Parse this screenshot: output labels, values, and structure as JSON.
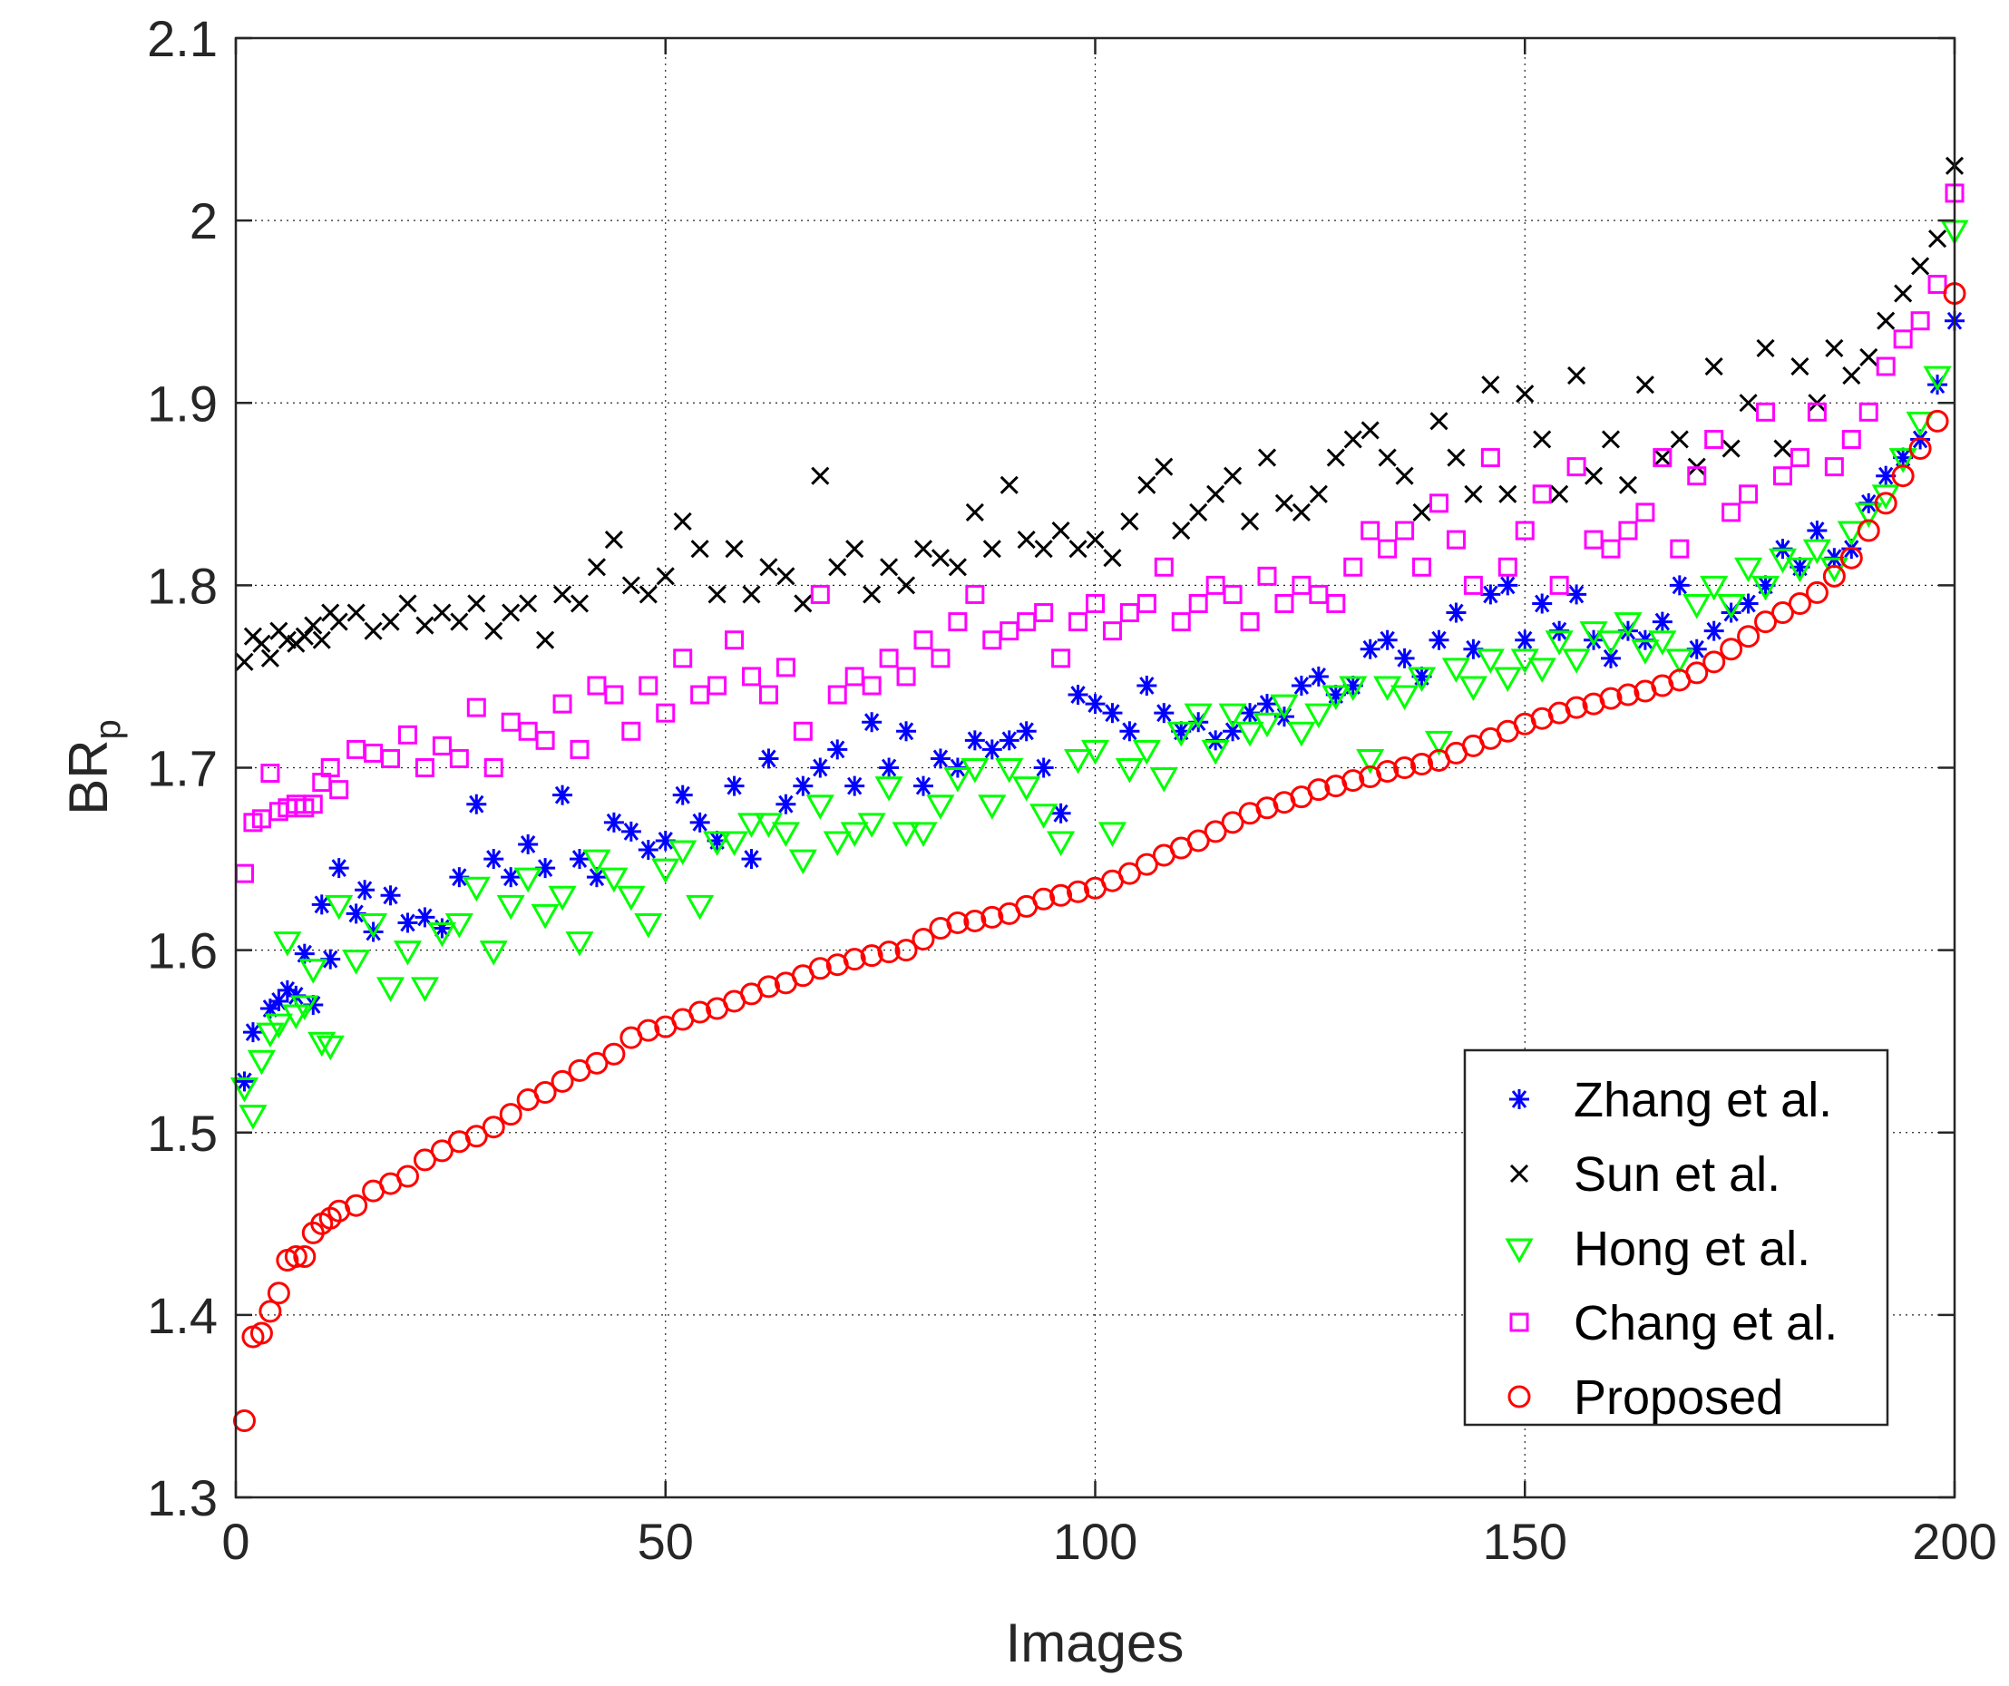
{
  "chart_data": {
    "type": "scatter",
    "title": "",
    "xlabel": "Images",
    "ylabel": "BR",
    "ylabel_subscript": "p",
    "xlim": [
      0,
      200
    ],
    "ylim": [
      1.3,
      2.1
    ],
    "xticks": [
      0,
      50,
      100,
      150,
      200
    ],
    "xtick_labels": [
      "0",
      "50",
      "100",
      "150",
      "200"
    ],
    "yticks": [
      1.3,
      1.4,
      1.5,
      1.6,
      1.7,
      1.8,
      1.9,
      2.0,
      2.1
    ],
    "ytick_labels": [
      "1.3",
      "1.4",
      "1.5",
      "1.6",
      "1.7",
      "1.8",
      "1.9",
      "2",
      "2.1"
    ],
    "grid": true,
    "legend_position": "bottom-right",
    "series": [
      {
        "name": "Zhang et al.",
        "marker": "asterisk",
        "color": "#0000ff",
        "x": [
          1,
          2,
          4,
          5,
          6,
          7,
          8,
          9,
          10,
          11,
          12,
          14,
          15,
          16,
          18,
          20,
          22,
          24,
          26,
          28,
          30,
          32,
          34,
          36,
          38,
          40,
          42,
          44,
          46,
          48,
          50,
          52,
          54,
          56,
          58,
          60,
          62,
          64,
          66,
          68,
          70,
          72,
          74,
          76,
          78,
          80,
          82,
          84,
          86,
          88,
          90,
          92,
          94,
          96,
          98,
          100,
          102,
          104,
          106,
          108,
          110,
          112,
          114,
          116,
          118,
          120,
          122,
          124,
          126,
          128,
          130,
          132,
          134,
          136,
          138,
          140,
          142,
          144,
          146,
          148,
          150,
          152,
          154,
          156,
          158,
          160,
          162,
          164,
          166,
          168,
          170,
          172,
          174,
          176,
          178,
          180,
          182,
          184,
          186,
          188,
          190,
          192,
          194,
          196,
          198,
          200
        ],
        "y": [
          1.528,
          1.555,
          1.568,
          1.572,
          1.578,
          1.575,
          1.598,
          1.57,
          1.625,
          1.595,
          1.645,
          1.62,
          1.633,
          1.61,
          1.63,
          1.615,
          1.618,
          1.612,
          1.64,
          1.68,
          1.65,
          1.64,
          1.658,
          1.645,
          1.685,
          1.65,
          1.64,
          1.67,
          1.665,
          1.655,
          1.66,
          1.685,
          1.67,
          1.66,
          1.69,
          1.65,
          1.705,
          1.68,
          1.69,
          1.7,
          1.71,
          1.69,
          1.725,
          1.7,
          1.72,
          1.69,
          1.705,
          1.7,
          1.715,
          1.71,
          1.715,
          1.72,
          1.7,
          1.675,
          1.74,
          1.735,
          1.73,
          1.72,
          1.745,
          1.73,
          1.72,
          1.725,
          1.715,
          1.72,
          1.73,
          1.735,
          1.728,
          1.745,
          1.75,
          1.74,
          1.745,
          1.765,
          1.77,
          1.76,
          1.75,
          1.77,
          1.785,
          1.765,
          1.795,
          1.8,
          1.77,
          1.79,
          1.775,
          1.795,
          1.77,
          1.76,
          1.775,
          1.77,
          1.78,
          1.8,
          1.765,
          1.775,
          1.785,
          1.79,
          1.8,
          1.82,
          1.81,
          1.83,
          1.815,
          1.82,
          1.845,
          1.86,
          1.87,
          1.88,
          1.91,
          1.945
        ]
      },
      {
        "name": "Sun et al.",
        "marker": "x",
        "color": "#000000",
        "x": [
          1,
          2,
          3,
          4,
          5,
          6,
          7,
          8,
          9,
          10,
          11,
          12,
          14,
          16,
          18,
          20,
          22,
          24,
          26,
          28,
          30,
          32,
          34,
          36,
          38,
          40,
          42,
          44,
          46,
          48,
          50,
          52,
          54,
          56,
          58,
          60,
          62,
          64,
          66,
          68,
          70,
          72,
          74,
          76,
          78,
          80,
          82,
          84,
          86,
          88,
          90,
          92,
          94,
          96,
          98,
          100,
          102,
          104,
          106,
          108,
          110,
          112,
          114,
          116,
          118,
          120,
          122,
          124,
          126,
          128,
          130,
          132,
          134,
          136,
          138,
          140,
          142,
          144,
          146,
          148,
          150,
          152,
          154,
          156,
          158,
          160,
          162,
          164,
          166,
          168,
          170,
          172,
          174,
          176,
          178,
          180,
          182,
          184,
          186,
          188,
          190,
          192,
          194,
          196,
          198,
          200
        ],
        "y": [
          1.758,
          1.772,
          1.768,
          1.76,
          1.775,
          1.77,
          1.768,
          1.772,
          1.778,
          1.77,
          1.785,
          1.78,
          1.785,
          1.775,
          1.78,
          1.79,
          1.778,
          1.785,
          1.78,
          1.79,
          1.775,
          1.785,
          1.79,
          1.77,
          1.795,
          1.79,
          1.81,
          1.825,
          1.8,
          1.795,
          1.805,
          1.835,
          1.82,
          1.795,
          1.82,
          1.795,
          1.81,
          1.805,
          1.79,
          1.86,
          1.81,
          1.82,
          1.795,
          1.81,
          1.8,
          1.82,
          1.815,
          1.81,
          1.84,
          1.82,
          1.855,
          1.825,
          1.82,
          1.83,
          1.82,
          1.825,
          1.815,
          1.835,
          1.855,
          1.865,
          1.83,
          1.84,
          1.85,
          1.86,
          1.835,
          1.87,
          1.845,
          1.84,
          1.85,
          1.87,
          1.88,
          1.885,
          1.87,
          1.86,
          1.84,
          1.89,
          1.87,
          1.85,
          1.91,
          1.85,
          1.905,
          1.88,
          1.85,
          1.915,
          1.86,
          1.88,
          1.855,
          1.91,
          1.87,
          1.88,
          1.865,
          1.92,
          1.875,
          1.9,
          1.93,
          1.875,
          1.92,
          1.9,
          1.93,
          1.915,
          1.925,
          1.945,
          1.96,
          1.975,
          1.99,
          2.03
        ]
      },
      {
        "name": "Hong et al.",
        "marker": "triangle-down",
        "color": "#00ff00",
        "x": [
          1,
          2,
          3,
          4,
          5,
          6,
          7,
          8,
          9,
          10,
          11,
          12,
          14,
          16,
          18,
          20,
          22,
          24,
          26,
          28,
          30,
          32,
          34,
          36,
          38,
          40,
          42,
          44,
          46,
          48,
          50,
          52,
          54,
          56,
          58,
          60,
          62,
          64,
          66,
          68,
          70,
          72,
          74,
          76,
          78,
          80,
          82,
          84,
          86,
          88,
          90,
          92,
          94,
          96,
          98,
          100,
          102,
          104,
          106,
          108,
          110,
          112,
          114,
          116,
          118,
          120,
          122,
          124,
          126,
          128,
          130,
          132,
          134,
          136,
          138,
          140,
          142,
          144,
          146,
          148,
          150,
          152,
          154,
          156,
          158,
          160,
          162,
          164,
          166,
          168,
          170,
          172,
          174,
          176,
          178,
          180,
          182,
          184,
          186,
          188,
          190,
          192,
          194,
          196,
          198,
          200
        ],
        "y": [
          1.525,
          1.51,
          1.54,
          1.555,
          1.56,
          1.605,
          1.565,
          1.57,
          1.59,
          1.55,
          1.548,
          1.625,
          1.595,
          1.615,
          1.58,
          1.6,
          1.58,
          1.61,
          1.615,
          1.635,
          1.6,
          1.625,
          1.64,
          1.62,
          1.63,
          1.605,
          1.65,
          1.64,
          1.63,
          1.615,
          1.645,
          1.655,
          1.625,
          1.66,
          1.66,
          1.67,
          1.67,
          1.665,
          1.65,
          1.68,
          1.66,
          1.665,
          1.67,
          1.69,
          1.665,
          1.665,
          1.68,
          1.695,
          1.7,
          1.68,
          1.7,
          1.69,
          1.675,
          1.66,
          1.705,
          1.71,
          1.665,
          1.7,
          1.71,
          1.695,
          1.72,
          1.73,
          1.71,
          1.73,
          1.72,
          1.725,
          1.735,
          1.72,
          1.73,
          1.74,
          1.745,
          1.705,
          1.745,
          1.74,
          1.75,
          1.715,
          1.755,
          1.745,
          1.76,
          1.75,
          1.76,
          1.755,
          1.77,
          1.76,
          1.775,
          1.77,
          1.78,
          1.765,
          1.77,
          1.76,
          1.79,
          1.8,
          1.79,
          1.81,
          1.8,
          1.815,
          1.81,
          1.82,
          1.81,
          1.83,
          1.84,
          1.85,
          1.87,
          1.89,
          1.915,
          1.995
        ]
      },
      {
        "name": "Chang et al.",
        "marker": "square",
        "color": "#ff00ff",
        "x": [
          1,
          2,
          3,
          4,
          5,
          6,
          7,
          8,
          9,
          10,
          11,
          12,
          14,
          16,
          18,
          20,
          22,
          24,
          26,
          28,
          30,
          32,
          34,
          36,
          38,
          40,
          42,
          44,
          46,
          48,
          50,
          52,
          54,
          56,
          58,
          60,
          62,
          64,
          66,
          68,
          70,
          72,
          74,
          76,
          78,
          80,
          82,
          84,
          86,
          88,
          90,
          92,
          94,
          96,
          98,
          100,
          102,
          104,
          106,
          108,
          110,
          112,
          114,
          116,
          118,
          120,
          122,
          124,
          126,
          128,
          130,
          132,
          134,
          136,
          138,
          140,
          142,
          144,
          146,
          148,
          150,
          152,
          154,
          156,
          158,
          160,
          162,
          164,
          166,
          168,
          170,
          172,
          174,
          176,
          178,
          180,
          182,
          184,
          186,
          188,
          190,
          192,
          194,
          196,
          198,
          200
        ],
        "y": [
          1.642,
          1.67,
          1.672,
          1.697,
          1.676,
          1.678,
          1.68,
          1.678,
          1.68,
          1.692,
          1.7,
          1.688,
          1.71,
          1.708,
          1.705,
          1.718,
          1.7,
          1.712,
          1.705,
          1.733,
          1.7,
          1.725,
          1.72,
          1.715,
          1.735,
          1.71,
          1.745,
          1.74,
          1.72,
          1.745,
          1.73,
          1.76,
          1.74,
          1.745,
          1.77,
          1.75,
          1.74,
          1.755,
          1.72,
          1.795,
          1.74,
          1.75,
          1.745,
          1.76,
          1.75,
          1.77,
          1.76,
          1.78,
          1.795,
          1.77,
          1.775,
          1.78,
          1.785,
          1.76,
          1.78,
          1.79,
          1.775,
          1.785,
          1.79,
          1.81,
          1.78,
          1.79,
          1.8,
          1.795,
          1.78,
          1.805,
          1.79,
          1.8,
          1.795,
          1.79,
          1.81,
          1.83,
          1.82,
          1.83,
          1.81,
          1.845,
          1.825,
          1.8,
          1.87,
          1.81,
          1.83,
          1.85,
          1.8,
          1.865,
          1.825,
          1.82,
          1.83,
          1.84,
          1.87,
          1.82,
          1.86,
          1.88,
          1.84,
          1.85,
          1.895,
          1.86,
          1.87,
          1.895,
          1.865,
          1.88,
          1.895,
          1.92,
          1.935,
          1.945,
          1.965,
          2.015
        ]
      },
      {
        "name": "Proposed",
        "marker": "circle",
        "color": "#ff0000",
        "x": [
          1,
          2,
          3,
          4,
          5,
          6,
          7,
          8,
          9,
          10,
          11,
          12,
          14,
          16,
          18,
          20,
          22,
          24,
          26,
          28,
          30,
          32,
          34,
          36,
          38,
          40,
          42,
          44,
          46,
          48,
          50,
          52,
          54,
          56,
          58,
          60,
          62,
          64,
          66,
          68,
          70,
          72,
          74,
          76,
          78,
          80,
          82,
          84,
          86,
          88,
          90,
          92,
          94,
          96,
          98,
          100,
          102,
          104,
          106,
          108,
          110,
          112,
          114,
          116,
          118,
          120,
          122,
          124,
          126,
          128,
          130,
          132,
          134,
          136,
          138,
          140,
          142,
          144,
          146,
          148,
          150,
          152,
          154,
          156,
          158,
          160,
          162,
          164,
          166,
          168,
          170,
          172,
          174,
          176,
          178,
          180,
          182,
          184,
          186,
          188,
          190,
          192,
          194,
          196,
          198,
          200
        ],
        "y": [
          1.342,
          1.388,
          1.39,
          1.402,
          1.412,
          1.43,
          1.432,
          1.432,
          1.445,
          1.45,
          1.453,
          1.457,
          1.46,
          1.468,
          1.472,
          1.476,
          1.485,
          1.49,
          1.495,
          1.498,
          1.503,
          1.51,
          1.518,
          1.522,
          1.528,
          1.534,
          1.538,
          1.543,
          1.552,
          1.556,
          1.558,
          1.562,
          1.566,
          1.568,
          1.572,
          1.576,
          1.58,
          1.582,
          1.586,
          1.59,
          1.592,
          1.595,
          1.597,
          1.599,
          1.6,
          1.606,
          1.612,
          1.615,
          1.616,
          1.618,
          1.62,
          1.624,
          1.628,
          1.63,
          1.632,
          1.634,
          1.638,
          1.642,
          1.647,
          1.652,
          1.656,
          1.66,
          1.665,
          1.67,
          1.675,
          1.678,
          1.681,
          1.684,
          1.688,
          1.69,
          1.693,
          1.695,
          1.698,
          1.7,
          1.702,
          1.704,
          1.708,
          1.712,
          1.716,
          1.72,
          1.724,
          1.727,
          1.73,
          1.733,
          1.735,
          1.738,
          1.74,
          1.742,
          1.745,
          1.748,
          1.752,
          1.758,
          1.765,
          1.772,
          1.78,
          1.785,
          1.79,
          1.796,
          1.805,
          1.815,
          1.83,
          1.845,
          1.86,
          1.875,
          1.89,
          1.96
        ]
      }
    ]
  }
}
